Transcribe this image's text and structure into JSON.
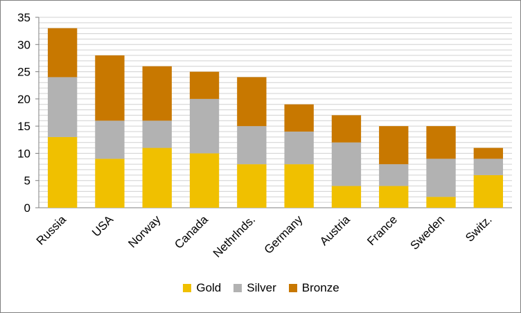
{
  "chart_data": {
    "type": "bar",
    "stacked": true,
    "title": "",
    "xlabel": "",
    "ylabel": "",
    "ylim": [
      0,
      35
    ],
    "yticks": [
      0,
      5,
      10,
      15,
      20,
      25,
      30,
      35
    ],
    "grid": true,
    "legend_position": "bottom",
    "categories": [
      "Russia",
      "USA",
      "Norway",
      "Canada",
      "Nethrlnds.",
      "Germany",
      "Austria",
      "France",
      "Sweden",
      "Switz."
    ],
    "series": [
      {
        "name": "Gold",
        "color": "#f0c000",
        "values": [
          13,
          9,
          11,
          10,
          8,
          8,
          4,
          4,
          2,
          6
        ]
      },
      {
        "name": "Silver",
        "color": "#b2b2b2",
        "values": [
          11,
          7,
          5,
          10,
          7,
          6,
          8,
          4,
          7,
          3
        ]
      },
      {
        "name": "Bronze",
        "color": "#c87800",
        "values": [
          9,
          12,
          10,
          5,
          9,
          5,
          5,
          7,
          6,
          2
        ]
      }
    ]
  }
}
